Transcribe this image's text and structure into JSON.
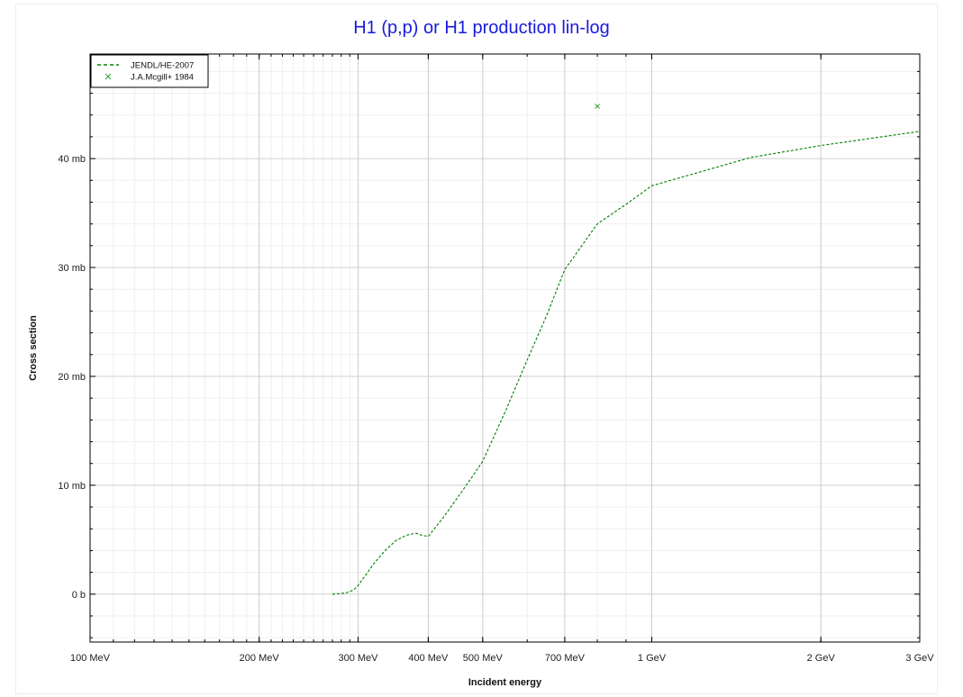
{
  "chart_data": {
    "type": "line",
    "title": "H1 (p,p) or H1 production lin-log",
    "xlabel": "Incident energy",
    "ylabel": "Cross section",
    "xscale": "log",
    "xlim_MeV": [
      100,
      3000
    ],
    "ylim_mb": [
      -4.4,
      49.6
    ],
    "grid": true,
    "legend_position": "top-left",
    "x_ticks": [
      {
        "value": 100,
        "label": "100 MeV"
      },
      {
        "value": 200,
        "label": "200 MeV"
      },
      {
        "value": 300,
        "label": "300 MeV"
      },
      {
        "value": 400,
        "label": "400 MeV"
      },
      {
        "value": 500,
        "label": "500 MeV"
      },
      {
        "value": 700,
        "label": "700 MeV"
      },
      {
        "value": 1000,
        "label": "1 GeV"
      },
      {
        "value": 2000,
        "label": "2 GeV"
      },
      {
        "value": 3000,
        "label": "3 GeV"
      }
    ],
    "y_ticks": [
      {
        "value": 0,
        "label": "0 b"
      },
      {
        "value": 10,
        "label": "10 mb"
      },
      {
        "value": 20,
        "label": "20 mb"
      },
      {
        "value": 30,
        "label": "30 mb"
      },
      {
        "value": 40,
        "label": "40 mb"
      }
    ],
    "series": [
      {
        "name": "JENDL/HE-2007",
        "kind": "line",
        "style": "dashed",
        "color": "#008000",
        "x_MeV": [
          270,
          285,
          295,
          300,
          310,
          320,
          335,
          350,
          365,
          380,
          390,
          400,
          425,
          450,
          475,
          500,
          550,
          600,
          650,
          700,
          800,
          900,
          1000,
          1500,
          2000,
          3000
        ],
        "y_mb": [
          0,
          0.1,
          0.4,
          0.8,
          1.8,
          2.8,
          4.0,
          4.9,
          5.4,
          5.6,
          5.4,
          5.3,
          7.0,
          8.8,
          10.5,
          12.2,
          16.9,
          21.5,
          25.6,
          29.8,
          34.0,
          35.8,
          37.5,
          40.1,
          41.2,
          42.5
        ]
      },
      {
        "name": "J.A.Mcgill+ 1984",
        "kind": "scatter",
        "marker": "x",
        "color": "#2ca02c",
        "x_MeV": [
          800
        ],
        "y_mb": [
          44.8
        ]
      }
    ]
  }
}
